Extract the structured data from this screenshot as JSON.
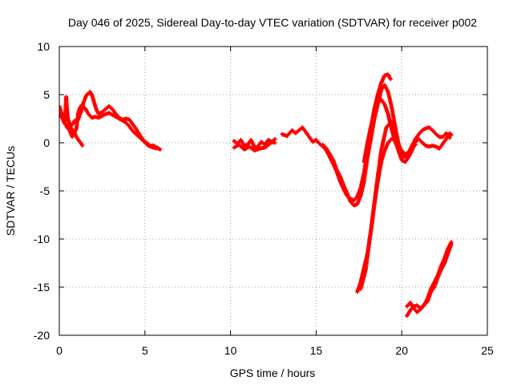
{
  "chart_data": {
    "type": "scatter",
    "title": "Day 046 of 2025, Sidereal Day-to-day VTEC variation (SDTVAR) for receiver p002",
    "xlabel": "GPS time / hours",
    "ylabel": "SDTVAR / TECUs",
    "xlim": [
      0,
      25
    ],
    "ylim": [
      -20,
      10
    ],
    "xticks": [
      0,
      5,
      10,
      15,
      20,
      25
    ],
    "yticks": [
      10,
      5,
      0,
      -5,
      -10,
      -15,
      -20
    ],
    "grid": true,
    "marker": "plus",
    "series": [
      {
        "name": "SDTVAR",
        "color": "#ff0000",
        "segments": [
          [
            [
              0.0,
              3.8
            ],
            [
              0.1,
              3.2
            ],
            [
              0.2,
              2.5
            ],
            [
              0.3,
              2.0
            ],
            [
              0.35,
              3.0
            ],
            [
              0.4,
              4.8
            ],
            [
              0.45,
              3.5
            ],
            [
              0.5,
              2.5
            ],
            [
              0.6,
              2.0
            ],
            [
              0.7,
              1.8
            ],
            [
              0.8,
              2.0
            ],
            [
              0.9,
              2.3
            ],
            [
              1.0,
              2.2
            ],
            [
              1.1,
              2.4
            ],
            [
              1.2,
              2.9
            ],
            [
              1.3,
              3.4
            ],
            [
              1.4,
              4.1
            ],
            [
              1.5,
              4.6
            ],
            [
              1.6,
              5.0
            ],
            [
              1.7,
              5.1
            ],
            [
              1.8,
              5.3
            ],
            [
              1.9,
              5.0
            ],
            [
              2.0,
              4.4
            ],
            [
              2.1,
              3.8
            ],
            [
              2.2,
              3.3
            ],
            [
              2.3,
              3.0
            ],
            [
              2.5,
              3.2
            ],
            [
              2.7,
              3.5
            ],
            [
              2.9,
              3.8
            ],
            [
              3.1,
              3.5
            ],
            [
              3.3,
              3.0
            ],
            [
              3.5,
              2.6
            ],
            [
              3.7,
              2.4
            ],
            [
              3.9,
              2.5
            ],
            [
              4.1,
              2.4
            ],
            [
              4.3,
              1.9
            ],
            [
              4.5,
              1.4
            ],
            [
              4.7,
              0.8
            ],
            [
              4.9,
              0.3
            ],
            [
              5.1,
              0.0
            ],
            [
              5.3,
              -0.3
            ],
            [
              5.5,
              -0.3
            ],
            [
              5.7,
              -0.5
            ],
            [
              5.9,
              -0.7
            ]
          ],
          [
            [
              0.0,
              3.4
            ],
            [
              0.15,
              2.6
            ],
            [
              0.3,
              2.2
            ],
            [
              0.45,
              1.6
            ],
            [
              0.6,
              1.3
            ],
            [
              0.75,
              0.6
            ],
            [
              0.85,
              0.9
            ],
            [
              1.0,
              1.5
            ],
            [
              1.1,
              3.1
            ],
            [
              1.2,
              3.6
            ],
            [
              1.3,
              3.9
            ],
            [
              1.5,
              3.6
            ],
            [
              1.7,
              3.0
            ],
            [
              1.9,
              2.6
            ],
            [
              2.1,
              2.7
            ],
            [
              2.3,
              2.6
            ],
            [
              2.6,
              2.9
            ],
            [
              2.9,
              3.1
            ],
            [
              3.2,
              2.8
            ],
            [
              3.5,
              2.5
            ],
            [
              3.8,
              2.2
            ],
            [
              4.0,
              1.9
            ],
            [
              4.3,
              1.2
            ],
            [
              4.6,
              0.7
            ],
            [
              4.9,
              0.2
            ],
            [
              5.2,
              -0.3
            ],
            [
              5.5,
              -0.5
            ],
            [
              5.8,
              -0.6
            ]
          ],
          [
            [
              0.5,
              2.0
            ],
            [
              0.7,
              1.5
            ],
            [
              0.8,
              1.3
            ],
            [
              0.9,
              1.0
            ],
            [
              1.0,
              0.6
            ],
            [
              1.15,
              0.2
            ],
            [
              1.25,
              0.0
            ],
            [
              1.35,
              -0.3
            ]
          ],
          [
            [
              10.2,
              0.2
            ],
            [
              10.4,
              -0.1
            ],
            [
              10.6,
              0.3
            ],
            [
              10.8,
              -0.3
            ],
            [
              11.0,
              -0.2
            ],
            [
              11.2,
              0.3
            ],
            [
              11.4,
              -0.5
            ],
            [
              11.6,
              -0.4
            ],
            [
              11.8,
              0.1
            ],
            [
              12.0,
              -0.2
            ],
            [
              12.2,
              0.3
            ],
            [
              12.4,
              0.1
            ],
            [
              12.6,
              0.0
            ]
          ],
          [
            [
              10.2,
              -0.5
            ],
            [
              10.5,
              -0.2
            ],
            [
              10.8,
              -0.7
            ],
            [
              11.1,
              -0.4
            ],
            [
              11.4,
              -0.8
            ],
            [
              11.7,
              -0.6
            ],
            [
              12.0,
              -0.5
            ],
            [
              12.3,
              -0.1
            ],
            [
              12.6,
              0.4
            ]
          ],
          [
            [
              13.0,
              0.9
            ],
            [
              13.3,
              0.7
            ],
            [
              13.6,
              1.3
            ],
            [
              13.8,
              1.0
            ],
            [
              14.0,
              1.3
            ],
            [
              14.2,
              1.6
            ],
            [
              14.4,
              1.1
            ],
            [
              14.6,
              0.6
            ],
            [
              14.8,
              0.1
            ],
            [
              15.0,
              0.3
            ],
            [
              15.2,
              -0.1
            ],
            [
              15.4,
              -0.4
            ],
            [
              15.6,
              -0.8
            ],
            [
              15.8,
              -1.5
            ],
            [
              16.0,
              -2.2
            ],
            [
              16.2,
              -3.0
            ],
            [
              16.4,
              -4.0
            ],
            [
              16.6,
              -4.8
            ],
            [
              16.8,
              -5.5
            ],
            [
              17.0,
              -5.8
            ],
            [
              17.2,
              -6.0
            ],
            [
              17.4,
              -5.6
            ],
            [
              17.6,
              -4.7
            ],
            [
              17.8,
              -3.1
            ],
            [
              18.0,
              -0.6
            ],
            [
              18.2,
              1.5
            ],
            [
              18.4,
              3.5
            ],
            [
              18.6,
              5.0
            ],
            [
              18.8,
              6.2
            ],
            [
              19.0,
              7.0
            ],
            [
              19.2,
              7.1
            ],
            [
              19.35,
              6.6
            ]
          ],
          [
            [
              15.4,
              -0.2
            ],
            [
              15.6,
              -0.6
            ],
            [
              15.8,
              -1.2
            ],
            [
              16.0,
              -1.8
            ],
            [
              16.2,
              -2.8
            ],
            [
              16.4,
              -3.5
            ],
            [
              16.6,
              -4.4
            ],
            [
              16.8,
              -5.2
            ],
            [
              17.0,
              -6.1
            ],
            [
              17.2,
              -6.5
            ],
            [
              17.4,
              -6.4
            ],
            [
              17.6,
              -5.5
            ],
            [
              17.8,
              -4.0
            ],
            [
              18.0,
              -1.5
            ],
            [
              18.2,
              0.5
            ],
            [
              18.4,
              2.5
            ],
            [
              18.6,
              4.0
            ],
            [
              18.8,
              5.5
            ],
            [
              19.0,
              6.0
            ],
            [
              19.2,
              5.3
            ],
            [
              19.4,
              3.8
            ],
            [
              19.6,
              1.8
            ],
            [
              19.8,
              0.0
            ],
            [
              20.0,
              -1.2
            ],
            [
              20.2,
              -1.5
            ],
            [
              20.4,
              -1.0
            ],
            [
              20.6,
              -0.3
            ],
            [
              20.8,
              0.4
            ],
            [
              21.0,
              0.9
            ],
            [
              21.2,
              1.3
            ],
            [
              21.4,
              1.5
            ],
            [
              21.6,
              1.6
            ],
            [
              21.8,
              1.3
            ],
            [
              22.0,
              0.9
            ],
            [
              22.2,
              0.6
            ],
            [
              22.4,
              0.6
            ],
            [
              22.6,
              1.0
            ],
            [
              22.8,
              0.5
            ]
          ],
          [
            [
              17.8,
              -2.0
            ],
            [
              18.0,
              0.0
            ],
            [
              18.2,
              1.7
            ],
            [
              18.4,
              3.2
            ],
            [
              18.6,
              4.1
            ],
            [
              18.8,
              4.5
            ],
            [
              19.0,
              4.0
            ],
            [
              19.2,
              3.0
            ],
            [
              19.4,
              1.5
            ],
            [
              19.6,
              0.2
            ],
            [
              19.8,
              -0.8
            ],
            [
              20.0,
              -1.8
            ],
            [
              20.2,
              -2.0
            ],
            [
              20.4,
              -1.5
            ],
            [
              20.6,
              -0.8
            ],
            [
              20.8,
              0.1
            ],
            [
              21.0,
              0.4
            ],
            [
              21.2,
              0.0
            ],
            [
              21.4,
              -0.3
            ],
            [
              21.6,
              -0.4
            ],
            [
              21.8,
              -0.3
            ],
            [
              22.0,
              -0.4
            ],
            [
              22.2,
              -0.6
            ],
            [
              22.4,
              -0.1
            ],
            [
              22.6,
              0.4
            ],
            [
              22.8,
              1.0
            ],
            [
              22.9,
              0.8
            ]
          ],
          [
            [
              17.4,
              -15.5
            ],
            [
              17.6,
              -14.5
            ],
            [
              17.8,
              -13.0
            ],
            [
              18.0,
              -11.5
            ],
            [
              18.2,
              -9.2
            ],
            [
              18.4,
              -6.5
            ],
            [
              18.6,
              -4.0
            ],
            [
              18.8,
              -2.0
            ],
            [
              19.0,
              -0.8
            ],
            [
              19.2,
              0.0
            ],
            [
              19.4,
              0.4
            ],
            [
              19.6,
              0.3
            ],
            [
              19.8,
              -0.3
            ],
            [
              20.0,
              -0.8
            ],
            [
              20.2,
              -1.2
            ],
            [
              20.4,
              -1.0
            ],
            [
              20.6,
              -0.6
            ],
            [
              20.8,
              -0.2
            ]
          ],
          [
            [
              17.6,
              -15.2
            ],
            [
              17.9,
              -13.2
            ],
            [
              18.2,
              -9.0
            ],
            [
              18.5,
              -4.8
            ],
            [
              18.8,
              -0.8
            ],
            [
              19.1,
              1.6
            ],
            [
              19.4,
              2.2
            ],
            [
              19.7,
              0.6
            ],
            [
              20.0,
              -1.6
            ]
          ],
          [
            [
              20.3,
              -18.0
            ],
            [
              20.5,
              -17.4
            ],
            [
              20.7,
              -17.0
            ],
            [
              20.9,
              -16.9
            ],
            [
              21.1,
              -17.2
            ],
            [
              21.3,
              -16.8
            ],
            [
              21.5,
              -16.5
            ],
            [
              21.7,
              -15.5
            ],
            [
              21.9,
              -15.0
            ],
            [
              22.1,
              -14.0
            ],
            [
              22.3,
              -13.2
            ],
            [
              22.5,
              -12.5
            ],
            [
              22.7,
              -11.5
            ],
            [
              22.9,
              -10.5
            ]
          ],
          [
            [
              20.3,
              -17.0
            ],
            [
              20.5,
              -16.6
            ],
            [
              20.7,
              -17.2
            ],
            [
              20.9,
              -17.6
            ],
            [
              21.1,
              -17.3
            ],
            [
              21.3,
              -16.9
            ],
            [
              21.5,
              -16.2
            ],
            [
              21.7,
              -15.2
            ],
            [
              21.9,
              -14.5
            ],
            [
              22.1,
              -13.8
            ],
            [
              22.3,
              -12.8
            ],
            [
              22.5,
              -12.0
            ],
            [
              22.7,
              -11.0
            ],
            [
              22.9,
              -10.3
            ]
          ]
        ]
      }
    ]
  }
}
